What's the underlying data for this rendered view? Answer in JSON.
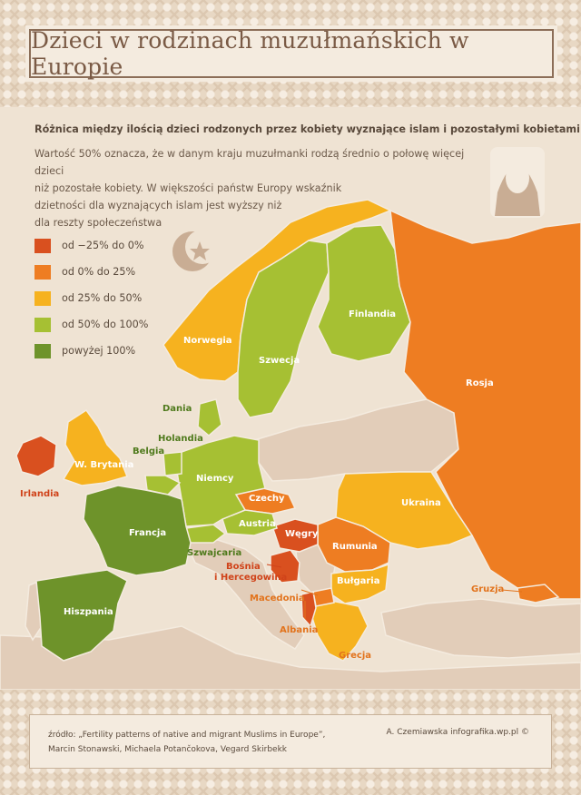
{
  "title": "Dzieci w rodzinach muzułmańskich w Europie",
  "subtitle": "Różnica między ilością dzieci rodzonych przez kobiety wyznające islam i pozostałymi kobietami",
  "description": [
    "Wartość 50% oznacza, że w danym kraju muzułmanki rodzą średnio o połowę więcej dzieci",
    "niż pozostałe kobiety. W większości państw Europy wskaźnik",
    "dzietności dla wyznających islam jest wyższy niż",
    "dla reszty społeczeństwa"
  ],
  "legend": [
    {
      "label": "od −25% do 0%",
      "color": "#d9501f"
    },
    {
      "label": "od 0% do 25%",
      "color": "#ee7d22"
    },
    {
      "label": "od 25% do 50%",
      "color": "#f6b21f"
    },
    {
      "label": "od 50% do 100%",
      "color": "#a6c033"
    },
    {
      "label": "powyżej 100%",
      "color": "#6e932a"
    }
  ],
  "colors": {
    "neutral_land": "#e2cdb9",
    "sea": "#efe3d3",
    "band": "#e8d8c4"
  },
  "icons": [
    "crescent-star-icon",
    "woman-hijab-icon"
  ],
  "countries": {
    "irlandia": "Irlandia",
    "w_brytania": "W. Brytania",
    "belgia": "Belgia",
    "holandia": "Holandia",
    "dania": "Dania",
    "norwegia": "Norwegia",
    "szwecja": "Szwecja",
    "finlandia": "Finlandia",
    "rosja": "Rosja",
    "niemcy": "Niemcy",
    "francja": "Francja",
    "czechy": "Czechy",
    "austria": "Austria",
    "szwajcaria": "Szwajcaria",
    "wegry": "Węgry",
    "rumunia": "Rumunia",
    "ukraina": "Ukraina",
    "bosnia_1": "Bośnia",
    "bosnia_2": "i Hercegowina",
    "bulgaria": "Bułgaria",
    "macedonia": "Macedonia",
    "albania": "Albania",
    "grecja": "Grecja",
    "hiszpania": "Hiszpania",
    "gruzja": "Gruzja"
  },
  "footer": {
    "source_line1": "źródło: „Fertility patterns of native and migrant Muslims in Europe”,",
    "source_line2": "Marcin Stonawski, Michaela Potančokova, Vegard Skirbekk",
    "credit": "A. Czemiawska infografika.wp.pl ©"
  }
}
